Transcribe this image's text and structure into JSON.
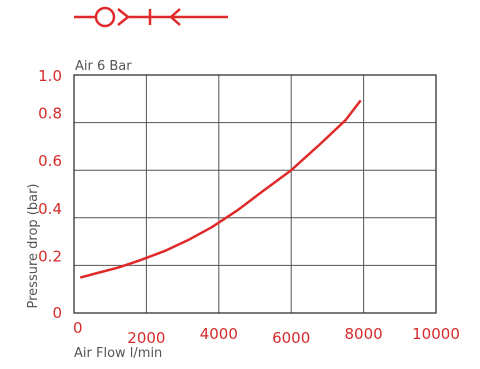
{
  "symbol": {
    "name": "flow-symbol-icon",
    "color": "#e02a2a"
  },
  "chart_data": {
    "type": "line",
    "title": "Air 6 Bar",
    "xlabel": "Air Flow l/min",
    "ylabel": "Pressure drop (bar)",
    "xlim": [
      0,
      10000
    ],
    "ylim": [
      0,
      1.0
    ],
    "x_ticks": [
      "0",
      "2000",
      "4000",
      "6000",
      "8000",
      "10000"
    ],
    "y_ticks": [
      "0",
      "0.2",
      "0.4",
      "0.6",
      "0.8",
      "1.0"
    ],
    "grid": true,
    "series": [
      {
        "color": "#e02a2a",
        "x": [
          200,
          700,
          1200,
          1800,
          2500,
          3200,
          3800,
          4500,
          5200,
          6000,
          6800,
          7500,
          7900
        ],
        "y": [
          0.15,
          0.17,
          0.19,
          0.22,
          0.26,
          0.31,
          0.36,
          0.43,
          0.51,
          0.6,
          0.71,
          0.81,
          0.89
        ]
      }
    ],
    "axis_color": "#333333",
    "grid_color": "#555555",
    "tick_color": "#d52b2b"
  }
}
